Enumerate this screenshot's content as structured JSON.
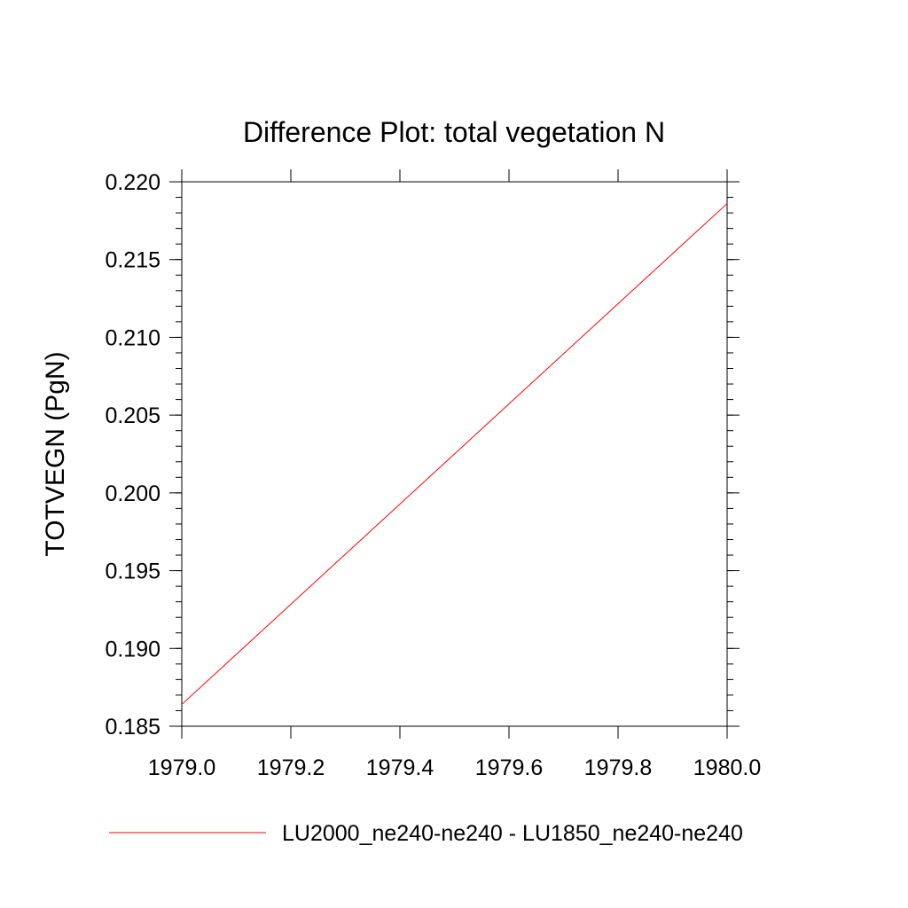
{
  "chart_data": {
    "type": "line",
    "title": "Difference Plot: total vegetation N",
    "xlabel": "",
    "ylabel": "TOTVEGN  (PgN)",
    "xlim": [
      1979.0,
      1980.0
    ],
    "ylim": [
      0.185,
      0.22
    ],
    "x_ticks": [
      "1979.0",
      "1979.2",
      "1979.4",
      "1979.6",
      "1979.8",
      "1980.0"
    ],
    "x_tick_values": [
      1979.0,
      1979.2,
      1979.4,
      1979.6,
      1979.8,
      1980.0
    ],
    "y_ticks": [
      "0.185",
      "0.190",
      "0.195",
      "0.200",
      "0.205",
      "0.210",
      "0.215",
      "0.220"
    ],
    "y_tick_values": [
      0.185,
      0.19,
      0.195,
      0.2,
      0.205,
      0.21,
      0.215,
      0.22
    ],
    "grid": false,
    "legend_position": "bottom",
    "series": [
      {
        "name": "LU2000_ne240-ne240 - LU1850_ne240-ne240",
        "color": "#ff0000",
        "x": [
          1979.0,
          1980.0
        ],
        "y": [
          0.1864,
          0.2186
        ]
      }
    ]
  }
}
